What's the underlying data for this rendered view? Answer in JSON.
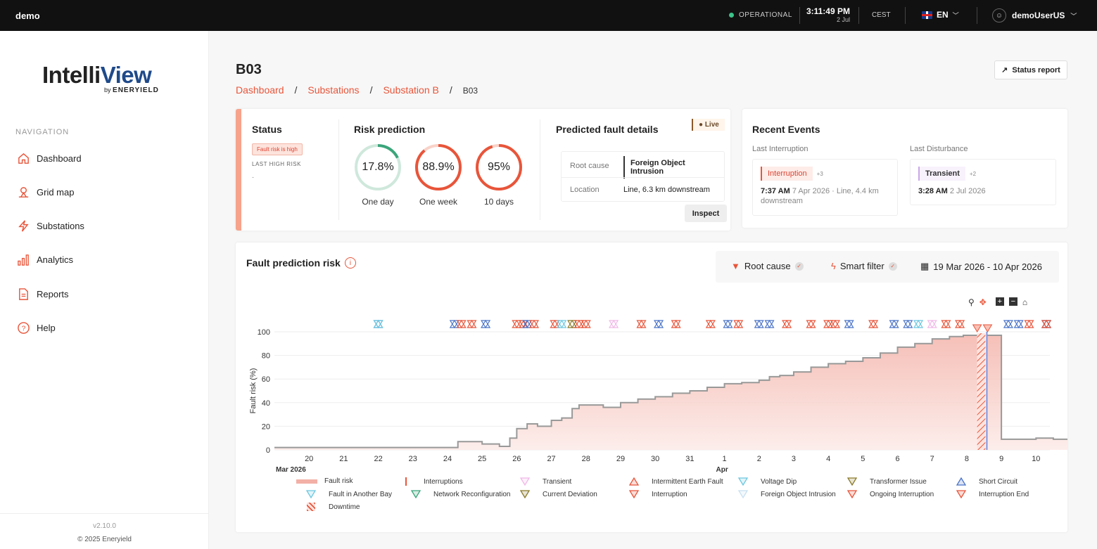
{
  "topbar": {
    "app": "demo",
    "status": "OPERATIONAL",
    "time": "3:11:49 PM",
    "date": "2 Jul",
    "timezone": "CEST",
    "language": "EN",
    "user": "demoUserUS"
  },
  "logo": {
    "intelli": "Intelli",
    "view": "View",
    "by": "by",
    "company": "ENERYIELD"
  },
  "nav": {
    "label": "NAVIGATION",
    "items": [
      "Dashboard",
      "Grid map",
      "Substations",
      "Analytics",
      "Reports",
      "Help"
    ]
  },
  "footer": {
    "version": "v2.10.0",
    "copyright": "© 2025 Eneryield"
  },
  "page": {
    "title": "B03",
    "breadcrumb": [
      "Dashboard",
      "Substations",
      "Substation B",
      "B03"
    ],
    "status_report": "Status report"
  },
  "status": {
    "title": "Status",
    "badge": "Fault risk is high",
    "last_high_label": "LAST HIGH RISK",
    "last_high_value": "-"
  },
  "risk": {
    "title": "Risk prediction",
    "gauges": [
      {
        "value": "17.8%",
        "pct": 17.8,
        "label": "One day",
        "color": "#3aa57a"
      },
      {
        "value": "88.9%",
        "pct": 88.9,
        "label": "One week",
        "color": "#e8553a"
      },
      {
        "value": "95%",
        "pct": 95,
        "label": "10 days",
        "color": "#e8553a"
      }
    ]
  },
  "fault": {
    "title": "Predicted fault details",
    "live": "Live",
    "root_cause_label": "Root cause",
    "root_cause": "Foreign Object Intrusion",
    "location_label": "Location",
    "location": "Line, 6.3 km downstream",
    "inspect": "Inspect"
  },
  "events": {
    "title": "Recent Events",
    "last_interruption_label": "Last Interruption",
    "last_disturbance_label": "Last Disturbance",
    "interruption": {
      "tag": "Interruption",
      "count": "+3",
      "time": "7:37 AM",
      "date": "7 Apr 2026",
      "loc": "· Line, 4.4 km",
      "loc2": "downstream"
    },
    "disturbance": {
      "tag": "Transient",
      "count": "+2",
      "time": "3:28 AM",
      "date": "2 Jul 2026"
    }
  },
  "chart_panel": {
    "title": "Fault prediction risk",
    "filter_root": "Root cause",
    "filter_smart": "Smart filter",
    "range": "19 Mar 2026 - 10 Apr 2026"
  },
  "chart_data": {
    "type": "area",
    "ylabel": "Fault risk (%)",
    "ylim": [
      0,
      100
    ],
    "yticks": [
      0,
      20,
      40,
      60,
      80,
      100
    ],
    "xticks": [
      "20",
      "21",
      "22",
      "23",
      "24",
      "25",
      "26",
      "27",
      "28",
      "29",
      "30",
      "31",
      "1",
      "2",
      "3",
      "4",
      "5",
      "6",
      "7",
      "8",
      "9",
      "10"
    ],
    "xgroups": [
      "Mar 2026",
      "Apr"
    ],
    "series": [
      {
        "name": "Fault risk",
        "x": [
          19,
          20,
          21,
          22,
          23,
          24,
          24.3,
          25,
          25.5,
          25.8,
          26,
          26.3,
          26.6,
          27,
          27.3,
          27.6,
          27.8,
          28,
          28.5,
          29,
          29.5,
          30,
          30.5,
          31,
          31.5,
          32,
          32.5,
          33,
          33.3,
          33.6,
          34,
          34.5,
          35,
          35.5,
          36,
          36.5,
          37,
          37.5,
          38,
          38.5,
          38.9,
          39.3,
          39.6,
          40,
          40.5,
          41,
          41.5,
          42.3
        ],
        "y": [
          2,
          2,
          2,
          2,
          2,
          2,
          7,
          5,
          3,
          10,
          18,
          22,
          20,
          25,
          27,
          35,
          38,
          38,
          36,
          40,
          43,
          45,
          48,
          50,
          53,
          56,
          57,
          59,
          62,
          63,
          66,
          70,
          73,
          75,
          78,
          82,
          87,
          90,
          94,
          96,
          97,
          97,
          97,
          9,
          9,
          10,
          9,
          8
        ]
      }
    ],
    "downtime": [
      39.3,
      39.6
    ]
  },
  "legend": [
    "Fault risk",
    "Interruptions",
    "Transient",
    "Intermittent Earth Fault",
    "Voltage Dip",
    "Transformer Issue",
    "Short Circuit",
    "Fault in Another Bay",
    "Network Reconfiguration",
    "Current Deviation",
    "Interruption",
    "Foreign Object Intrusion",
    "Ongoing Interruption",
    "Interruption End",
    "Downtime"
  ],
  "colors": {
    "accent": "#e8553a",
    "blue": "#4a73c8",
    "lightblue": "#6cc7e0"
  }
}
